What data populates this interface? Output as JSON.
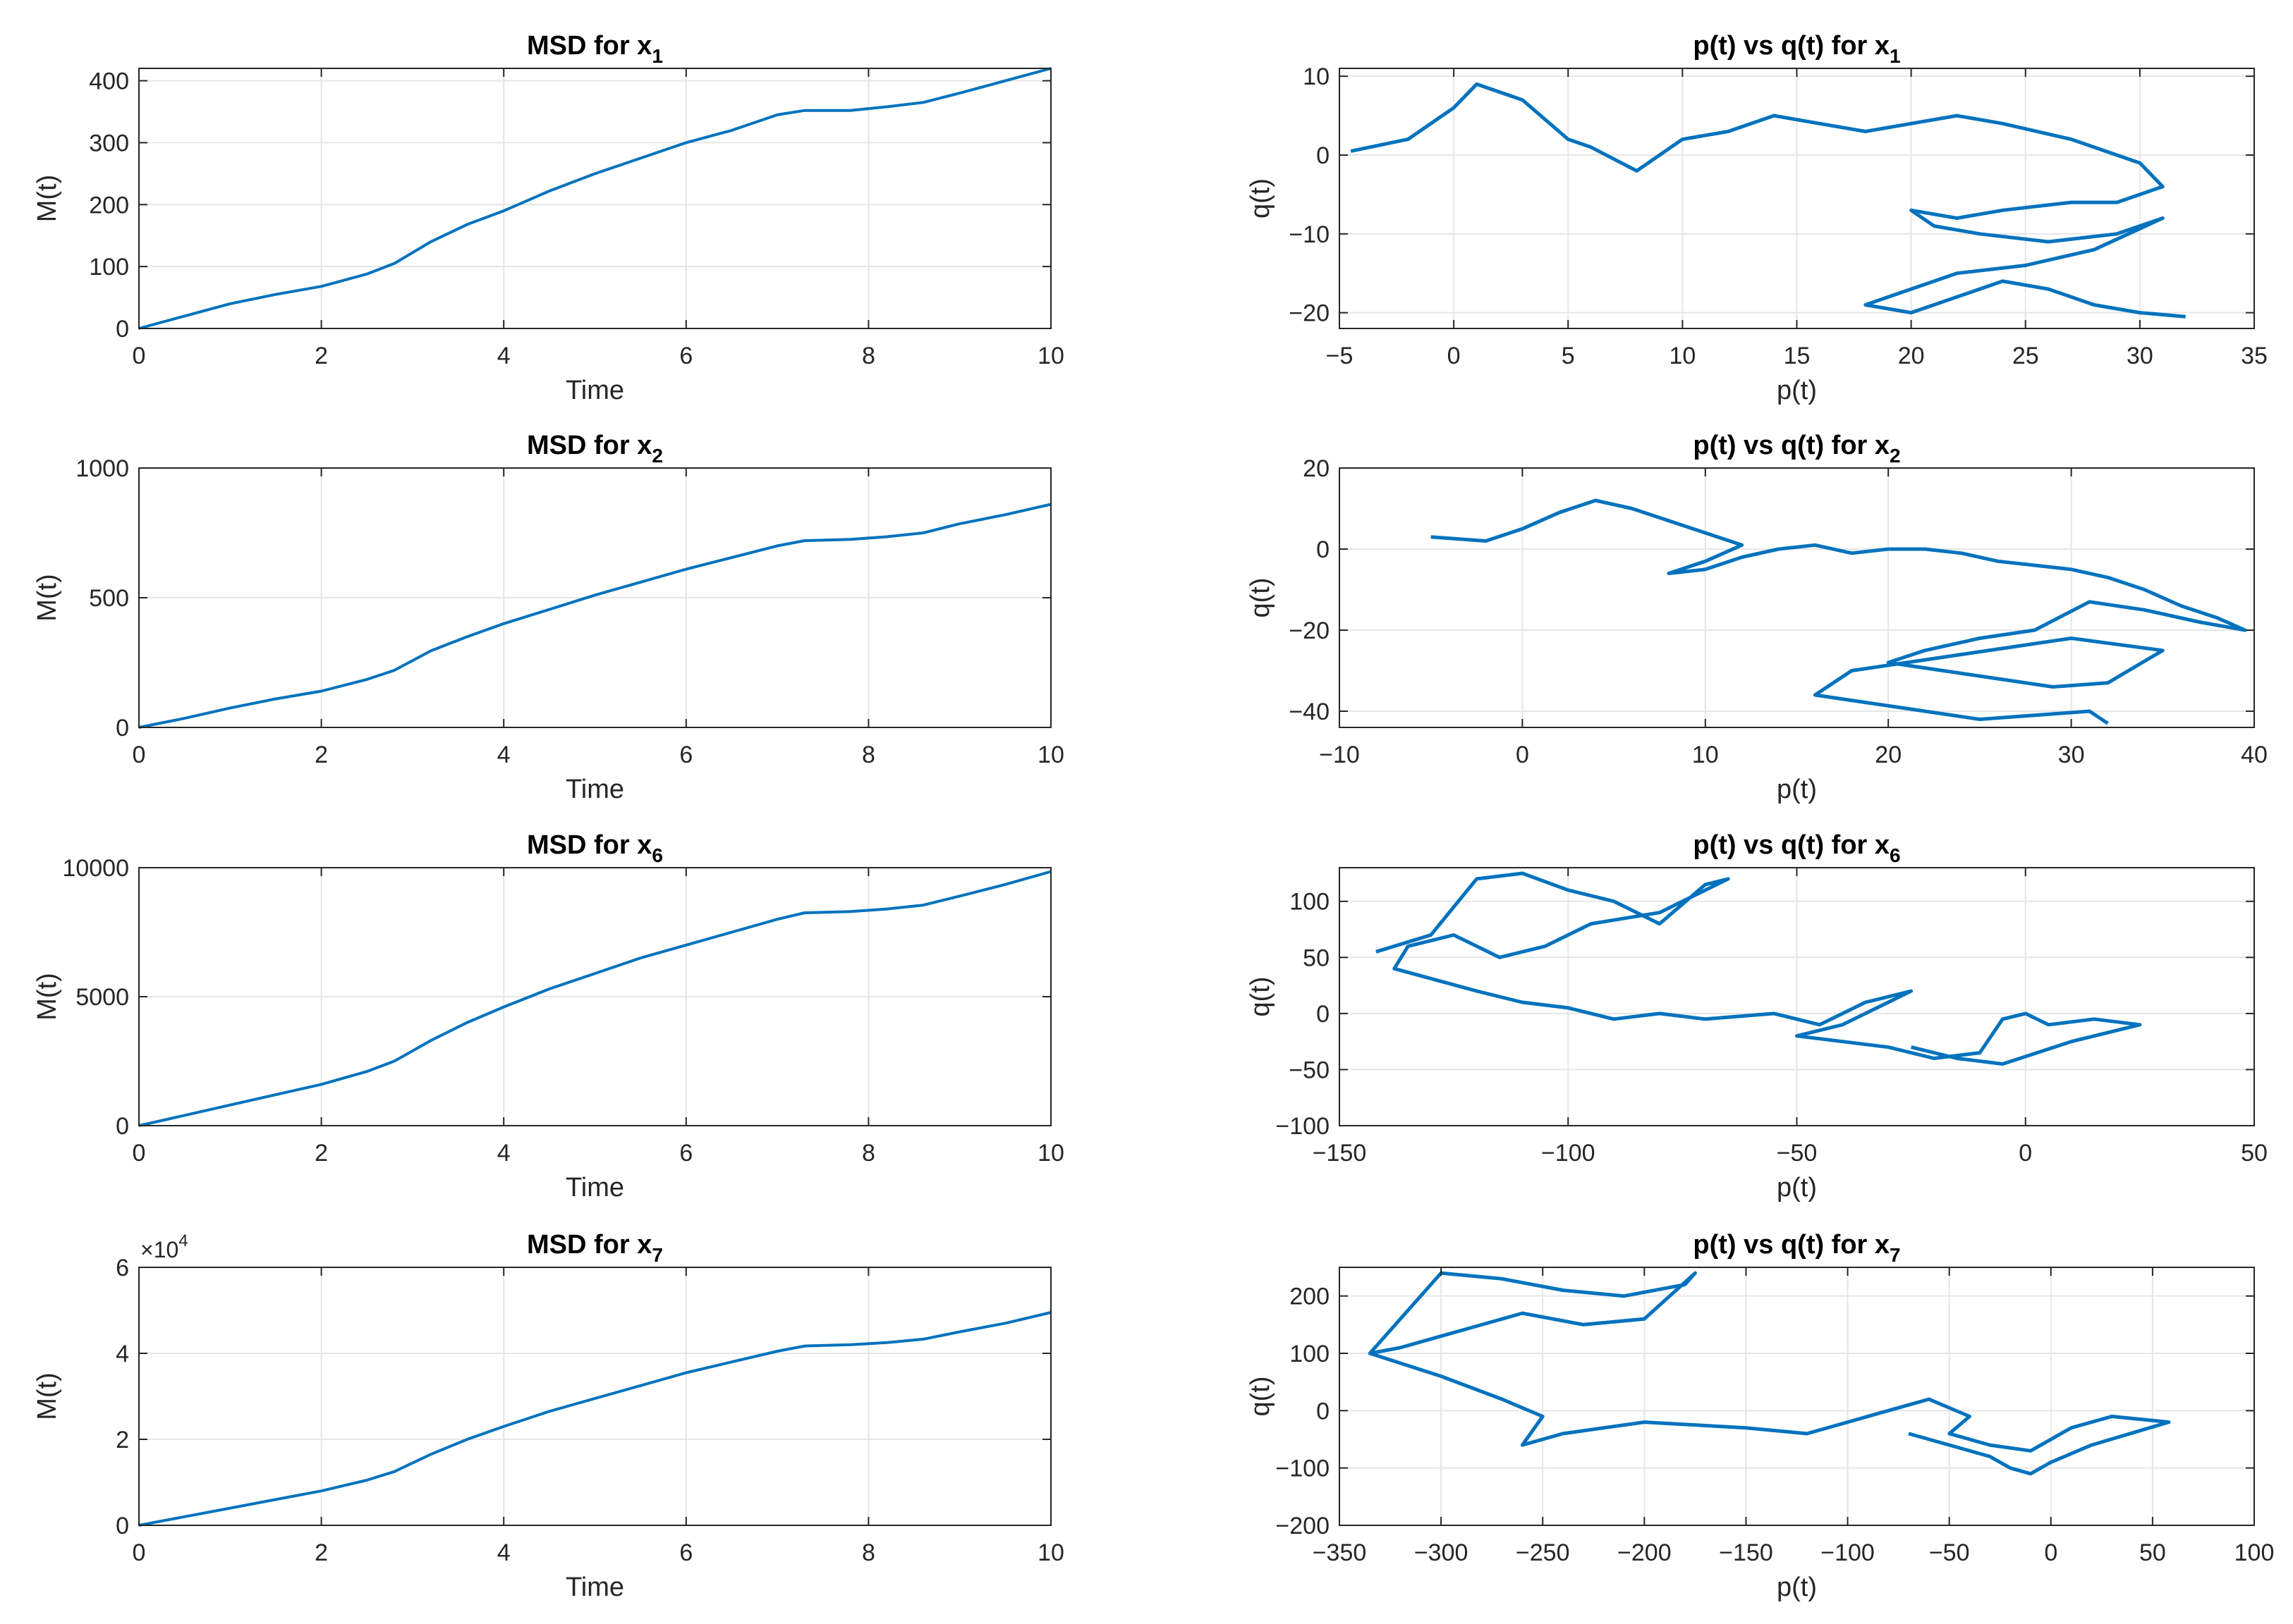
{
  "style": {
    "line_color": "#0072BD",
    "grid_color": "#E6E6E6",
    "axis_color": "#262626"
  },
  "chart_data": [
    {
      "type": "line",
      "title": "MSD for x",
      "title_sub": "1",
      "xlabel": "Time",
      "ylabel": "M(t)",
      "xlim": [
        0,
        10
      ],
      "ylim": [
        0,
        420
      ],
      "xticks": [
        0,
        2,
        4,
        6,
        8,
        10
      ],
      "yticks": [
        0,
        100,
        200,
        300,
        400
      ],
      "grid": true,
      "series": [
        {
          "x": [
            0,
            0.5,
            1,
            1.5,
            2,
            2.5,
            2.8,
            3.2,
            3.6,
            4,
            4.5,
            5,
            5.5,
            6,
            6.5,
            7,
            7.3,
            7.8,
            8.2,
            8.6,
            9,
            9.5,
            10
          ],
          "y": [
            0,
            20,
            40,
            55,
            68,
            88,
            105,
            140,
            168,
            190,
            222,
            250,
            275,
            300,
            320,
            345,
            352,
            352,
            358,
            365,
            380,
            400,
            420
          ]
        }
      ]
    },
    {
      "type": "line",
      "title": "p(t) vs q(t) for x",
      "title_sub": "1",
      "xlabel": "p(t)",
      "ylabel": "q(t)",
      "xlim": [
        -5,
        35
      ],
      "ylim": [
        -22,
        11
      ],
      "xticks": [
        -5,
        0,
        5,
        10,
        15,
        20,
        25,
        30,
        35
      ],
      "yticks": [
        -20,
        -10,
        0,
        10
      ],
      "grid": true,
      "series": [
        {
          "x": [
            -4.5,
            -2,
            0,
            1,
            3,
            5,
            6,
            8,
            10,
            12,
            14,
            16,
            18,
            20,
            22,
            24,
            27,
            30,
            31,
            29,
            27,
            24,
            22,
            20,
            21,
            23,
            26,
            29,
            31,
            28,
            25,
            22,
            20,
            18,
            20,
            22,
            24,
            26,
            28,
            30,
            32
          ],
          "y": [
            0.5,
            2,
            6,
            9,
            7,
            2,
            1,
            -2,
            2,
            3,
            5,
            4,
            3,
            4,
            5,
            4,
            2,
            -1,
            -4,
            -6,
            -6,
            -7,
            -8,
            -7,
            -9,
            -10,
            -11,
            -10,
            -8,
            -12,
            -14,
            -15,
            -17,
            -19,
            -20,
            -18,
            -16,
            -17,
            -19,
            -20,
            -20.5
          ]
        }
      ]
    },
    {
      "type": "line",
      "title": "MSD for x",
      "title_sub": "2",
      "xlabel": "Time",
      "ylabel": "M(t)",
      "xlim": [
        0,
        10
      ],
      "ylim": [
        0,
        1000
      ],
      "xticks": [
        0,
        2,
        4,
        6,
        8,
        10
      ],
      "yticks": [
        0,
        500,
        1000
      ],
      "grid": true,
      "series": [
        {
          "x": [
            0,
            0.5,
            1,
            1.5,
            2,
            2.5,
            2.8,
            3.2,
            3.6,
            4,
            4.5,
            5,
            5.5,
            6,
            6.5,
            7,
            7.3,
            7.8,
            8.2,
            8.6,
            9,
            9.5,
            10
          ],
          "y": [
            0,
            35,
            75,
            110,
            140,
            185,
            220,
            295,
            350,
            400,
            455,
            510,
            560,
            610,
            655,
            700,
            720,
            725,
            735,
            750,
            785,
            820,
            860
          ]
        }
      ]
    },
    {
      "type": "line",
      "title": "p(t) vs q(t) for x",
      "title_sub": "2",
      "xlabel": "p(t)",
      "ylabel": "q(t)",
      "xlim": [
        -10,
        40
      ],
      "ylim": [
        -44,
        20
      ],
      "xticks": [
        -10,
        0,
        10,
        20,
        30,
        40
      ],
      "yticks": [
        -40,
        -20,
        0,
        20
      ],
      "grid": true,
      "series": [
        {
          "x": [
            -5,
            -2,
            0,
            2,
            4,
            6,
            8,
            10,
            12,
            10,
            8,
            10,
            12,
            14,
            16,
            18,
            20,
            22,
            24,
            26,
            28,
            30,
            32,
            34,
            36,
            38,
            39.5,
            37,
            34,
            31,
            28,
            25,
            22,
            20,
            23,
            26,
            29,
            32,
            35,
            30,
            27,
            24,
            21,
            18,
            16,
            19,
            22,
            25,
            28,
            31,
            32
          ],
          "y": [
            3,
            2,
            5,
            9,
            12,
            10,
            7,
            4,
            1,
            -3,
            -6,
            -5,
            -2,
            0,
            1,
            -1,
            0,
            0,
            -1,
            -3,
            -4,
            -5,
            -7,
            -10,
            -14,
            -17,
            -20,
            -18,
            -15,
            -13,
            -20,
            -22,
            -25,
            -28,
            -30,
            -32,
            -34,
            -33,
            -25,
            -22,
            -24,
            -26,
            -28,
            -30,
            -36,
            -38,
            -40,
            -42,
            -41,
            -40,
            -43
          ]
        }
      ]
    },
    {
      "type": "line",
      "title": "MSD for x",
      "title_sub": "6",
      "xlabel": "Time",
      "ylabel": "M(t)",
      "xlim": [
        0,
        10
      ],
      "ylim": [
        0,
        10000
      ],
      "xticks": [
        0,
        2,
        4,
        6,
        8,
        10
      ],
      "yticks": [
        0,
        5000,
        10000
      ],
      "grid": true,
      "series": [
        {
          "x": [
            0,
            0.5,
            1,
            1.5,
            2,
            2.5,
            2.8,
            3.2,
            3.6,
            4,
            4.5,
            5,
            5.5,
            6,
            6.5,
            7,
            7.3,
            7.8,
            8.2,
            8.6,
            9,
            9.5,
            10
          ],
          "y": [
            0,
            400,
            800,
            1200,
            1600,
            2100,
            2500,
            3300,
            4000,
            4600,
            5300,
            5900,
            6500,
            7000,
            7500,
            8000,
            8250,
            8300,
            8400,
            8550,
            8900,
            9350,
            9850
          ]
        }
      ]
    },
    {
      "type": "line",
      "title": "p(t) vs q(t) for x",
      "title_sub": "6",
      "xlabel": "p(t)",
      "ylabel": "q(t)",
      "xlim": [
        -150,
        50
      ],
      "ylim": [
        -100,
        130
      ],
      "xticks": [
        -150,
        -100,
        -50,
        0,
        50
      ],
      "yticks": [
        -100,
        -50,
        0,
        50,
        100
      ],
      "grid": true,
      "series": [
        {
          "x": [
            -142,
            -130,
            -120,
            -110,
            -100,
            -90,
            -80,
            -70,
            -65,
            -80,
            -95,
            -105,
            -115,
            -125,
            -135,
            -138,
            -120,
            -110,
            -100,
            -90,
            -80,
            -70,
            -55,
            -45,
            -35,
            -25,
            -40,
            -50,
            -30,
            -20,
            -10,
            -5,
            0,
            5,
            15,
            25,
            10,
            -5,
            -15,
            -25
          ],
          "y": [
            55,
            70,
            120,
            125,
            110,
            100,
            80,
            115,
            120,
            90,
            80,
            60,
            50,
            70,
            60,
            40,
            20,
            10,
            5,
            -5,
            0,
            -5,
            0,
            -10,
            10,
            20,
            -10,
            -20,
            -30,
            -40,
            -35,
            -5,
            0,
            -10,
            -5,
            -10,
            -25,
            -45,
            -40,
            -30
          ]
        }
      ]
    },
    {
      "type": "line",
      "title": "MSD for x",
      "title_sub": "7",
      "xlabel": "Time",
      "ylabel": "M(t)",
      "xlim": [
        0,
        10
      ],
      "ylim": [
        0,
        60000
      ],
      "xticks": [
        0,
        2,
        4,
        6,
        8,
        10
      ],
      "yticks": [
        0,
        20000,
        40000,
        60000
      ],
      "ytick_labels": [
        "0",
        "2",
        "4",
        "6"
      ],
      "exponent_label": "×10",
      "exponent_power": "4",
      "grid": true,
      "series": [
        {
          "x": [
            0,
            0.5,
            1,
            1.5,
            2,
            2.5,
            2.8,
            3.2,
            3.6,
            4,
            4.5,
            5,
            5.5,
            6,
            6.5,
            7,
            7.3,
            7.8,
            8.2,
            8.6,
            9,
            9.5,
            10
          ],
          "y": [
            0,
            2000,
            4000,
            6000,
            8000,
            10500,
            12500,
            16500,
            20000,
            23000,
            26500,
            29500,
            32500,
            35500,
            38000,
            40500,
            41700,
            42000,
            42500,
            43300,
            45000,
            47000,
            49500
          ]
        }
      ]
    },
    {
      "type": "line",
      "title": "p(t) vs q(t) for x",
      "title_sub": "7",
      "xlabel": "p(t)",
      "ylabel": "q(t)",
      "xlim": [
        -350,
        100
      ],
      "ylim": [
        -200,
        250
      ],
      "xticks": [
        -350,
        -300,
        -250,
        -200,
        -150,
        -100,
        -50,
        0,
        50,
        100
      ],
      "yticks": [
        -200,
        -100,
        0,
        100,
        200
      ],
      "grid": true,
      "series": [
        {
          "x": [
            -335,
            -300,
            -270,
            -240,
            -210,
            -180,
            -175,
            -200,
            -230,
            -260,
            -290,
            -320,
            -335,
            -300,
            -270,
            -250,
            -260,
            -240,
            -200,
            -150,
            -120,
            -100,
            -80,
            -60,
            -40,
            -50,
            -30,
            -10,
            10,
            30,
            58,
            20,
            0,
            -10,
            -20,
            -30,
            -50,
            -70
          ],
          "y": [
            100,
            240,
            230,
            210,
            200,
            220,
            240,
            160,
            150,
            170,
            140,
            110,
            100,
            60,
            20,
            -10,
            -60,
            -40,
            -20,
            -30,
            -40,
            -20,
            0,
            20,
            -10,
            -40,
            -60,
            -70,
            -30,
            -10,
            -20,
            -60,
            -90,
            -110,
            -100,
            -80,
            -60,
            -40
          ]
        }
      ]
    }
  ]
}
